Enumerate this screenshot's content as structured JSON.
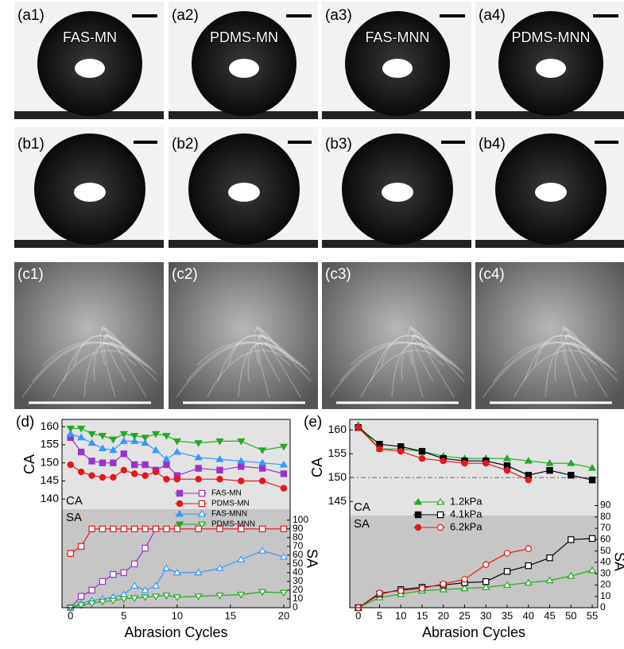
{
  "panels": {
    "row_a": [
      {
        "label": "(a1)",
        "sample": "FAS-MN"
      },
      {
        "label": "(a2)",
        "sample": "PDMS-MN"
      },
      {
        "label": "(a3)",
        "sample": "FAS-MNN"
      },
      {
        "label": "(a4)",
        "sample": "PDMS-MNN"
      }
    ],
    "row_b": [
      "(b1)",
      "(b2)",
      "(b3)",
      "(b4)"
    ],
    "row_c": [
      "(c1)",
      "(c2)",
      "(c3)",
      "(c4)"
    ]
  },
  "chart_data": [
    {
      "type": "line",
      "panel_label": "(d)",
      "x": [
        0,
        1,
        2,
        3,
        4,
        5,
        6,
        7,
        8,
        9,
        10,
        12,
        14,
        16,
        18,
        20
      ],
      "xlim": [
        -0.8,
        20.6
      ],
      "xticks": [
        0,
        5,
        10,
        15,
        20
      ],
      "xlabel": "Abrasion Cycles",
      "ylabel": "CA",
      "y2label": "SA",
      "ylim": [
        110,
        162
      ],
      "yticks": [
        140,
        145,
        150,
        155,
        160
      ],
      "y2lim": [
        0,
        215
      ],
      "y2ticks": [
        0,
        10,
        20,
        30,
        40,
        50,
        60,
        70,
        80,
        90,
        100
      ],
      "annotations": [
        "CA",
        "SA"
      ],
      "series": [
        {
          "name": "FAS-MN",
          "color": "#9933cc",
          "marker": "square",
          "filled": true,
          "values": [
            157,
            153,
            150.5,
            150,
            150,
            152.5,
            149.5,
            149.5,
            148,
            149.5,
            146.5,
            148.5,
            148,
            149,
            148.5,
            147
          ]
        },
        {
          "color": "#9933cc",
          "marker": "square",
          "filled": false,
          "axis": "y2",
          "values": [
            0,
            13,
            20,
            30,
            38,
            40,
            50,
            68,
            90,
            null,
            null,
            null,
            null,
            null,
            null,
            null
          ]
        },
        {
          "name": "PDMS-MN",
          "color": "#e8161b",
          "marker": "circle",
          "filled": true,
          "values": [
            149.5,
            147.5,
            146.5,
            146,
            146,
            148,
            147,
            146.5,
            147.5,
            145.5,
            145.5,
            145.5,
            145.5,
            145,
            145,
            143
          ]
        },
        {
          "color": "#e8161b",
          "marker": "square",
          "filled": false,
          "axis": "y2",
          "values": [
            62,
            70,
            90,
            90,
            90,
            90,
            90,
            90,
            90,
            90,
            90,
            90,
            90,
            90,
            90,
            90
          ]
        },
        {
          "name": "FAS-MNN",
          "color": "#3399ff",
          "marker": "triangle",
          "filled": true,
          "values": [
            158,
            157,
            155.5,
            154,
            153.5,
            156,
            156,
            155.5,
            153.5,
            151,
            153,
            151.5,
            151,
            150.5,
            150,
            149.5
          ]
        },
        {
          "color": "#3399ff",
          "marker": "triangle",
          "filled": false,
          "axis": "y2",
          "values": [
            0,
            5,
            8,
            10,
            12,
            15,
            25,
            20,
            25,
            45,
            40,
            40,
            45,
            55,
            65,
            58
          ]
        },
        {
          "name": "PDMS-MNN",
          "color": "#22aa22",
          "marker": "triangle-down",
          "filled": true,
          "values": [
            159.5,
            159.5,
            158,
            157.5,
            156.5,
            158,
            157.5,
            157,
            158,
            157.5,
            156,
            155.5,
            156,
            156,
            153.5,
            154.5
          ]
        },
        {
          "color": "#22aa22",
          "marker": "triangle-down",
          "filled": false,
          "axis": "y2",
          "values": [
            0,
            3,
            5,
            7,
            8,
            10,
            11,
            12,
            13,
            14,
            12,
            13,
            14,
            15,
            18,
            17
          ]
        }
      ]
    },
    {
      "type": "line",
      "panel_label": "(e)",
      "x": [
        0,
        5,
        10,
        15,
        20,
        25,
        30,
        35,
        40,
        45,
        50,
        55
      ],
      "xlim": [
        -2,
        56.3
      ],
      "xticks": [
        0,
        5,
        10,
        15,
        20,
        25,
        30,
        35,
        40,
        45,
        50,
        55
      ],
      "xlabel": "Abrasion Cycles",
      "ylabel": "CA",
      "y2label": "SA",
      "ylim": [
        122.7,
        162.2
      ],
      "yticks": [
        145,
        150,
        155,
        160
      ],
      "y2lim": [
        0,
        166
      ],
      "y2ticks": [
        0,
        10,
        20,
        30,
        40,
        50,
        60,
        70,
        80,
        90
      ],
      "refline": 150,
      "annotations": [
        "CA",
        "SA"
      ],
      "series": [
        {
          "name": "1.2kPa",
          "color": "#22aa22",
          "marker": "triangle",
          "filled": true,
          "values": [
            161,
            156,
            156,
            155.5,
            154.5,
            154,
            154,
            154,
            153.5,
            153,
            153,
            152
          ]
        },
        {
          "color": "#22aa22",
          "marker": "triangle",
          "filled": false,
          "axis": "y2",
          "values": [
            0,
            9,
            12,
            15,
            16,
            17,
            18,
            20,
            22,
            24,
            28,
            33
          ]
        },
        {
          "name": "4.1kPa",
          "color": "#000000",
          "marker": "square",
          "filled": true,
          "values": [
            160.5,
            157,
            156.5,
            155.5,
            154,
            153.5,
            153.5,
            152.5,
            150.5,
            151.5,
            150.5,
            149.5
          ]
        },
        {
          "color": "#000000",
          "marker": "square",
          "filled": false,
          "axis": "y2",
          "values": [
            0,
            12,
            16,
            18,
            20,
            22,
            23,
            32,
            37,
            44,
            60,
            61
          ]
        },
        {
          "name": "6.2kPa",
          "color": "#e8161b",
          "marker": "circle",
          "filled": true,
          "values": [
            160.5,
            156,
            155.5,
            154,
            153.5,
            153,
            153,
            151.5,
            149.5,
            null,
            null,
            null
          ]
        },
        {
          "color": "#e8161b",
          "marker": "circle",
          "filled": false,
          "axis": "y2",
          "values": [
            0,
            13,
            15,
            17,
            21,
            25,
            38,
            48,
            52,
            null,
            null,
            null
          ]
        }
      ]
    }
  ]
}
